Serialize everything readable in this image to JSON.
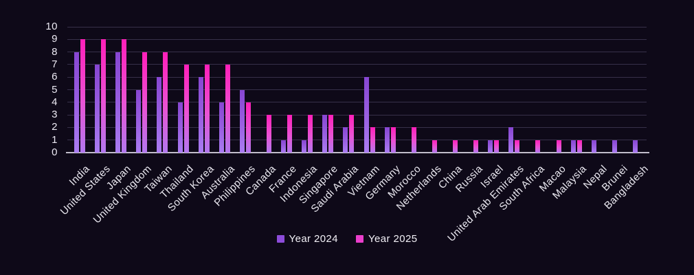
{
  "chart_data": {
    "type": "bar",
    "title": "",
    "xlabel": "",
    "ylabel": "",
    "ylim": [
      0,
      10
    ],
    "y_ticks": [
      0,
      1,
      2,
      3,
      4,
      5,
      6,
      7,
      8,
      9,
      10
    ],
    "grid": true,
    "legend_position": "bottom-center",
    "categories": [
      "India",
      "United States",
      "Japan",
      "United Kingdom",
      "Taiwan",
      "Thailand",
      "South Korea",
      "Australia",
      "Philippines",
      "Canada",
      "France",
      "Indonesia",
      "Singapore",
      "Saudi Arabia",
      "Vietnam",
      "Germany",
      "Morocco",
      "Netherlands",
      "China",
      "Russia",
      "Israel",
      "United Arab Emirates",
      "South Africa",
      "Macao",
      "Malaysia",
      "Nepal",
      "Brunei",
      "Bangladesh"
    ],
    "series": [
      {
        "name": "Year 2024",
        "legend_color": "#8d4cda",
        "gradient_top": "#8746d2",
        "gradient_bottom": "#aa7cf2",
        "values": [
          8,
          7,
          8,
          5,
          6,
          4,
          6,
          4,
          5,
          0,
          1,
          1,
          3,
          2,
          6,
          2,
          0,
          0,
          0,
          0,
          1,
          2,
          0,
          0,
          1,
          1,
          1,
          1
        ]
      },
      {
        "name": "Year 2025",
        "legend_color": "#ea3ecb",
        "gradient_top": "#ff1fb9",
        "gradient_bottom": "#b278ef",
        "values": [
          9,
          9,
          9,
          8,
          8,
          7,
          7,
          7,
          4,
          3,
          3,
          3,
          3,
          3,
          2,
          2,
          2,
          1,
          1,
          1,
          1,
          1,
          1,
          1,
          1,
          0,
          0,
          0
        ]
      }
    ]
  },
  "colors": {
    "background": "#0e0918",
    "gridline": "#37304a",
    "axis_line": "#c2becb",
    "text": "#edeaf4"
  }
}
